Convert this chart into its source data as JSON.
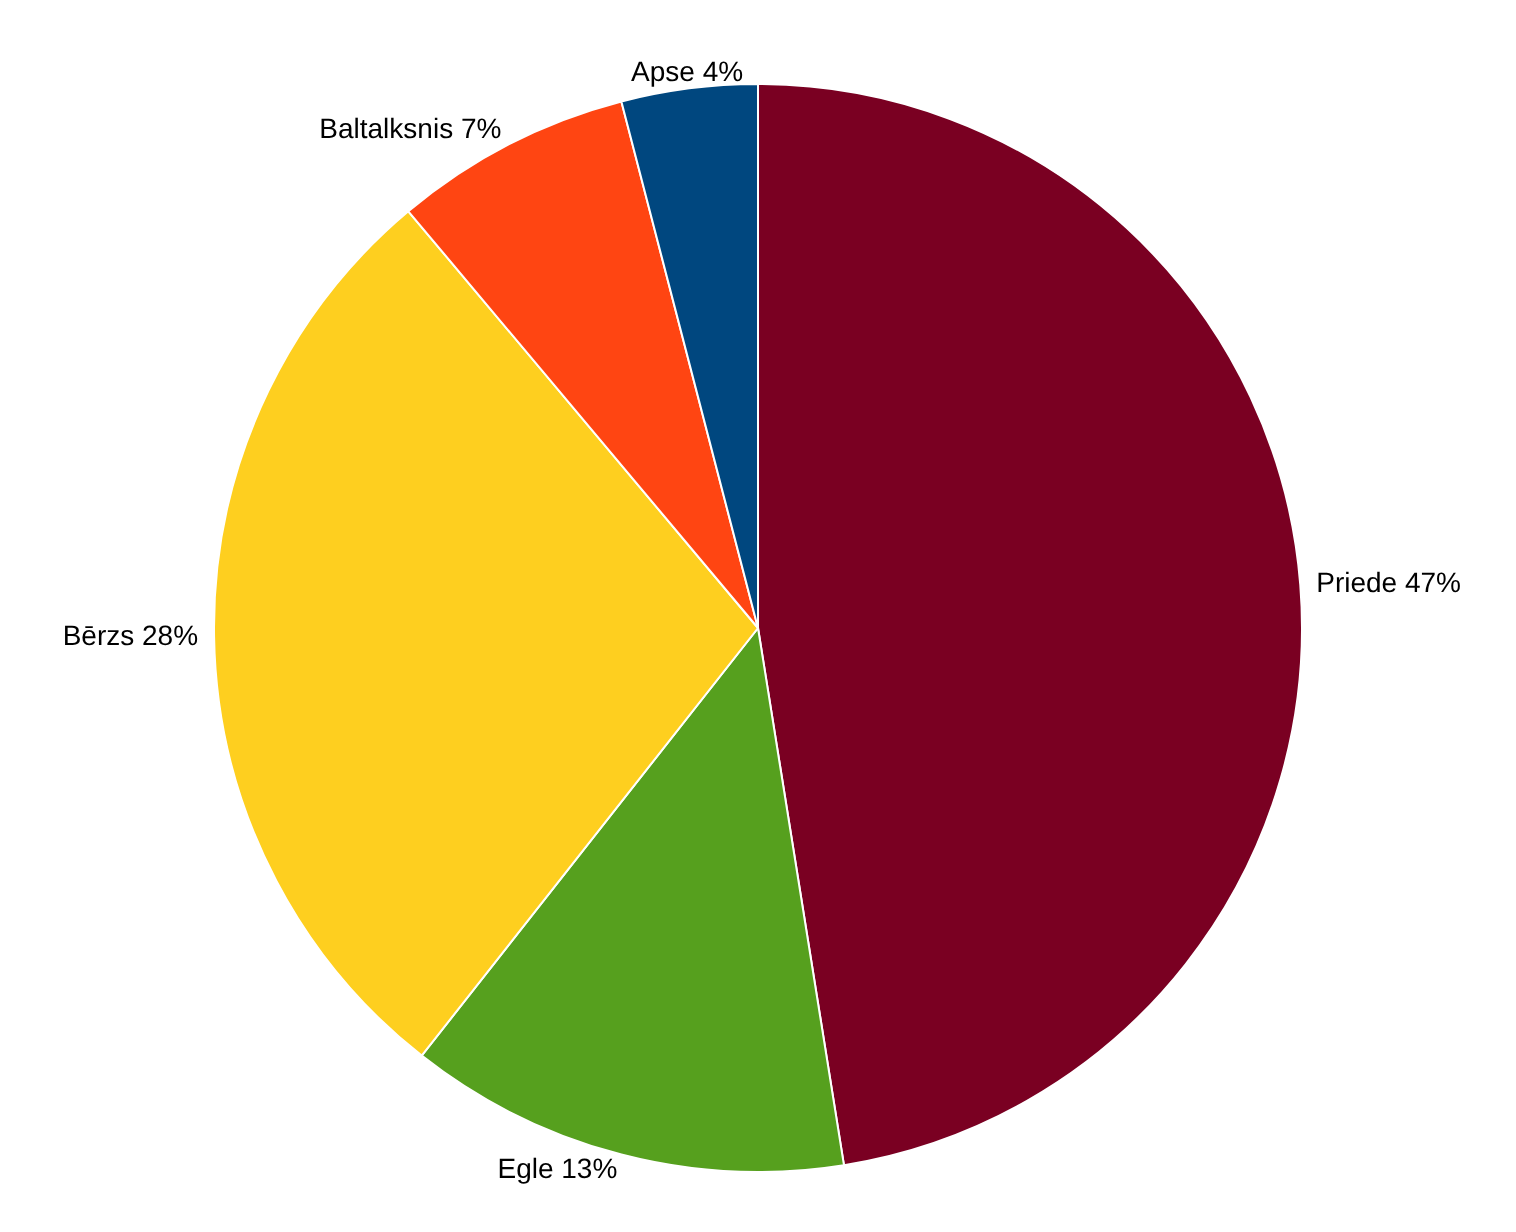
{
  "chart_data": {
    "type": "pie",
    "categories": [
      "Priede",
      "Egle",
      "Bērzs",
      "Baltalksnis",
      "Apse"
    ],
    "values": [
      47,
      13,
      28,
      7,
      4
    ],
    "value_labels": [
      "47%",
      "13%",
      "28%",
      "7%",
      "4%"
    ],
    "colors": [
      "#7a0022",
      "#56a01e",
      "#fecf1f",
      "#ff4512",
      "#00477f"
    ]
  }
}
